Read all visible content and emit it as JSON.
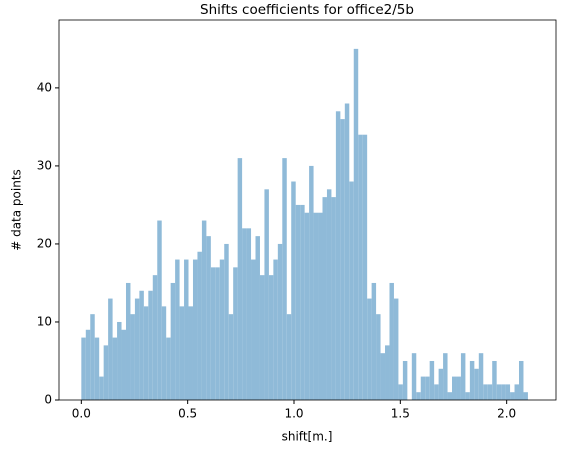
{
  "chart_data": {
    "type": "histogram",
    "title": "Shifts coefficients for office2/5b",
    "x_label": "shift[m.]",
    "y_label": "# data points",
    "color": "#8fbad8",
    "bins": [
      0,
      0.021,
      0.042,
      0.063,
      0.084,
      0.105,
      0.126,
      0.147,
      0.168,
      0.189,
      0.21,
      0.231,
      0.252,
      0.273,
      0.294,
      0.315,
      0.336,
      0.357,
      0.378,
      0.399,
      0.42,
      0.441,
      0.462,
      0.483,
      0.504,
      0.525,
      0.546,
      0.567,
      0.588,
      0.609,
      0.63,
      0.651,
      0.672,
      0.693,
      0.714,
      0.735,
      0.756,
      0.777,
      0.798,
      0.819,
      0.84,
      0.861,
      0.882,
      0.903,
      0.924,
      0.945,
      0.966,
      0.987,
      1.008,
      1.029,
      1.05,
      1.071,
      1.092,
      1.113,
      1.134,
      1.155,
      1.176,
      1.197,
      1.218,
      1.239,
      1.26,
      1.281,
      1.302,
      1.323,
      1.344,
      1.365,
      1.386,
      1.407,
      1.428,
      1.449,
      1.47,
      1.491,
      1.512,
      1.533,
      1.554,
      1.575,
      1.596,
      1.617,
      1.638,
      1.659,
      1.68,
      1.701,
      1.722,
      1.743,
      1.764,
      1.785,
      1.806,
      1.827,
      1.848,
      1.869,
      1.89,
      1.911,
      1.932,
      1.953,
      1.974,
      1.995,
      2.016,
      2.037,
      2.058,
      2.079,
      2.1
    ],
    "values": [
      8,
      9,
      11,
      8,
      3,
      7,
      13,
      8,
      10,
      9,
      15,
      11,
      13,
      14,
      12,
      14,
      16,
      23,
      12,
      8,
      15,
      18,
      12,
      18,
      12,
      18,
      19,
      23,
      21,
      17,
      17,
      18,
      20,
      11,
      17,
      31,
      22,
      22,
      18,
      21,
      16,
      27,
      16,
      18,
      20,
      31,
      11,
      28,
      25,
      25,
      24,
      30,
      24,
      24,
      26,
      27,
      26,
      37,
      36,
      38,
      28,
      45,
      34,
      34,
      13,
      15,
      11,
      6,
      7,
      15,
      13,
      2,
      5,
      0,
      6,
      1,
      3,
      3,
      5,
      2,
      4,
      6,
      1,
      3,
      3,
      6,
      1,
      5,
      4,
      6,
      2,
      2,
      5,
      2,
      2,
      2,
      1,
      2,
      5,
      1
    ],
    "xlim": [
      -0.105,
      2.232
    ],
    "ylim": [
      0,
      48.7
    ],
    "xticks": [
      {
        "value": 0,
        "label": "0.0"
      },
      {
        "value": 0.5,
        "label": "0.5"
      },
      {
        "value": 1,
        "label": "1.0"
      },
      {
        "value": 1.5,
        "label": "1.5"
      },
      {
        "value": 2,
        "label": "2.0"
      }
    ],
    "yticks": [
      0,
      10,
      20,
      30,
      40
    ]
  }
}
